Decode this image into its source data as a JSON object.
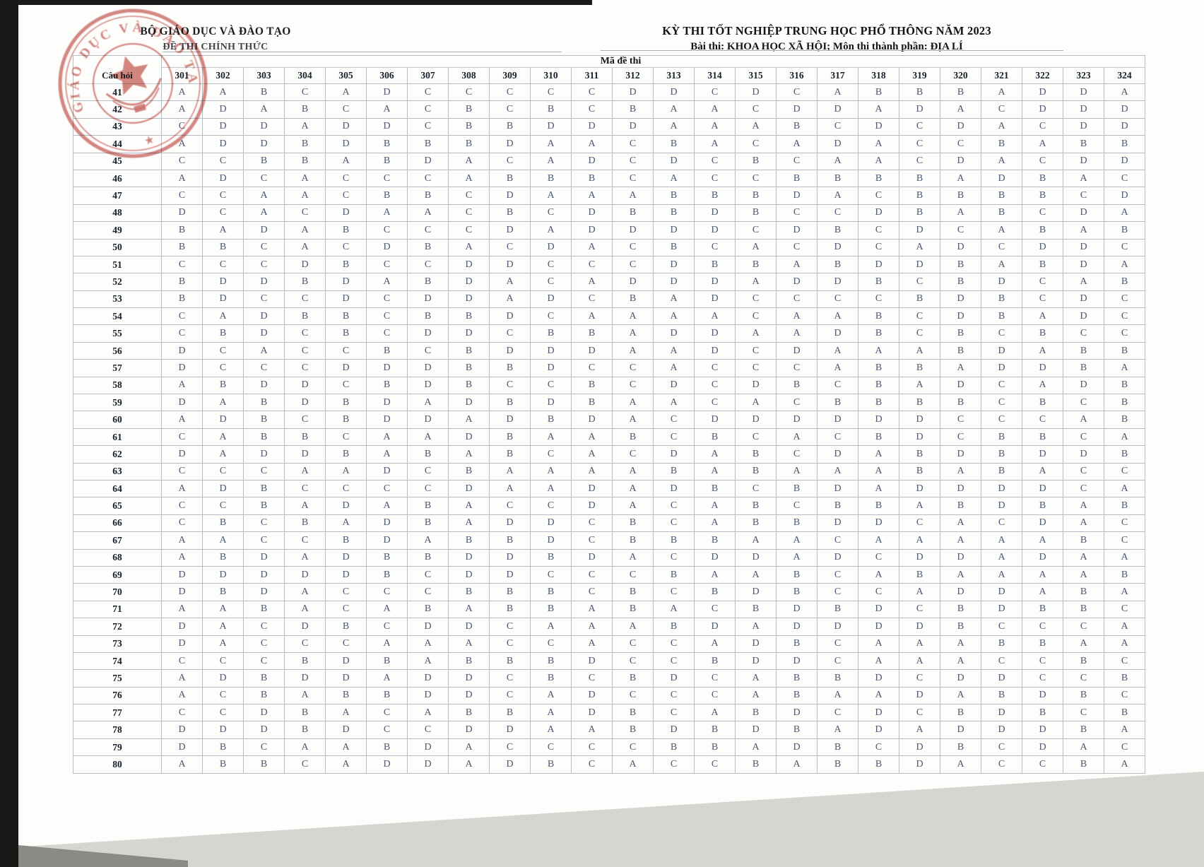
{
  "header": {
    "left_title": "BỘ GIÁO DỤC VÀ ĐÀO TẠO",
    "left_subtitle": "ĐỀ THI CHÍNH THỨC",
    "right_title": "KỲ THI TỐT NGHIỆP TRUNG HỌC PHỔ THÔNG NĂM 2023",
    "right_subtitle": "Bài thi:  KHOA HỌC XÃ HỘI; Môn thi thành phần: ĐỊA LÍ"
  },
  "stamp": {
    "arc_text": "GIÁO DỤC VÀ ĐÀO TẠO",
    "color": "#bd453e"
  },
  "table": {
    "corner_label": "Câu hỏi",
    "group_label": "Mã đề thi",
    "code_columns": [
      "301",
      "302",
      "303",
      "304",
      "305",
      "306",
      "307",
      "308",
      "309",
      "310",
      "311",
      "312",
      "313",
      "314",
      "315",
      "316",
      "317",
      "318",
      "319",
      "320",
      "321",
      "322",
      "323",
      "324"
    ],
    "rows": [
      {
        "q": "41",
        "answers": [
          "A",
          "A",
          "B",
          "C",
          "A",
          "D",
          "C",
          "C",
          "C",
          "C",
          "C",
          "D",
          "D",
          "C",
          "D",
          "C",
          "A",
          "B",
          "B",
          "B",
          "A",
          "D",
          "D",
          "A"
        ]
      },
      {
        "q": "42",
        "answers": [
          "A",
          "D",
          "A",
          "B",
          "C",
          "A",
          "C",
          "B",
          "C",
          "B",
          "C",
          "B",
          "A",
          "A",
          "C",
          "D",
          "D",
          "A",
          "D",
          "A",
          "C",
          "D",
          "D",
          "D"
        ]
      },
      {
        "q": "43",
        "answers": [
          "C",
          "D",
          "D",
          "A",
          "D",
          "D",
          "C",
          "B",
          "B",
          "D",
          "D",
          "D",
          "A",
          "A",
          "A",
          "B",
          "C",
          "D",
          "C",
          "D",
          "A",
          "C",
          "D",
          "D"
        ]
      },
      {
        "q": "44",
        "answers": [
          "A",
          "D",
          "D",
          "B",
          "D",
          "B",
          "B",
          "B",
          "D",
          "A",
          "A",
          "C",
          "B",
          "A",
          "C",
          "A",
          "D",
          "A",
          "C",
          "C",
          "B",
          "A",
          "B",
          "B"
        ]
      },
      {
        "q": "45",
        "answers": [
          "C",
          "C",
          "B",
          "B",
          "A",
          "B",
          "D",
          "A",
          "C",
          "A",
          "D",
          "C",
          "D",
          "C",
          "B",
          "C",
          "A",
          "A",
          "C",
          "D",
          "A",
          "C",
          "D",
          "D"
        ]
      },
      {
        "q": "46",
        "answers": [
          "A",
          "D",
          "C",
          "A",
          "C",
          "C",
          "C",
          "A",
          "B",
          "B",
          "B",
          "C",
          "A",
          "C",
          "C",
          "B",
          "B",
          "B",
          "B",
          "A",
          "D",
          "B",
          "A",
          "C"
        ]
      },
      {
        "q": "47",
        "answers": [
          "C",
          "C",
          "A",
          "A",
          "C",
          "B",
          "B",
          "C",
          "D",
          "A",
          "A",
          "A",
          "B",
          "B",
          "B",
          "D",
          "A",
          "C",
          "B",
          "B",
          "B",
          "B",
          "C",
          "D"
        ]
      },
      {
        "q": "48",
        "answers": [
          "D",
          "C",
          "A",
          "C",
          "D",
          "A",
          "A",
          "C",
          "B",
          "C",
          "D",
          "B",
          "B",
          "D",
          "B",
          "C",
          "C",
          "D",
          "B",
          "A",
          "B",
          "C",
          "D",
          "A"
        ]
      },
      {
        "q": "49",
        "answers": [
          "B",
          "A",
          "D",
          "A",
          "B",
          "C",
          "C",
          "C",
          "D",
          "A",
          "D",
          "D",
          "D",
          "D",
          "C",
          "D",
          "B",
          "C",
          "D",
          "C",
          "A",
          "B",
          "A",
          "B"
        ]
      },
      {
        "q": "50",
        "answers": [
          "B",
          "B",
          "C",
          "A",
          "C",
          "D",
          "B",
          "A",
          "C",
          "D",
          "A",
          "C",
          "B",
          "C",
          "A",
          "C",
          "D",
          "C",
          "A",
          "D",
          "C",
          "D",
          "D",
          "C"
        ]
      },
      {
        "q": "51",
        "answers": [
          "C",
          "C",
          "C",
          "D",
          "B",
          "C",
          "C",
          "D",
          "D",
          "C",
          "C",
          "C",
          "D",
          "B",
          "B",
          "A",
          "B",
          "D",
          "D",
          "B",
          "A",
          "B",
          "D",
          "A"
        ]
      },
      {
        "q": "52",
        "answers": [
          "B",
          "D",
          "D",
          "B",
          "D",
          "A",
          "B",
          "D",
          "A",
          "C",
          "A",
          "D",
          "D",
          "D",
          "A",
          "D",
          "D",
          "B",
          "C",
          "B",
          "D",
          "C",
          "A",
          "B"
        ]
      },
      {
        "q": "53",
        "answers": [
          "B",
          "D",
          "C",
          "C",
          "D",
          "C",
          "D",
          "D",
          "A",
          "D",
          "C",
          "B",
          "A",
          "D",
          "C",
          "C",
          "C",
          "C",
          "B",
          "D",
          "B",
          "C",
          "D",
          "C"
        ]
      },
      {
        "q": "54",
        "answers": [
          "C",
          "A",
          "D",
          "B",
          "B",
          "C",
          "B",
          "B",
          "D",
          "C",
          "A",
          "A",
          "A",
          "A",
          "C",
          "A",
          "A",
          "B",
          "C",
          "D",
          "B",
          "A",
          "D",
          "C"
        ]
      },
      {
        "q": "55",
        "answers": [
          "C",
          "B",
          "D",
          "C",
          "B",
          "C",
          "D",
          "D",
          "C",
          "B",
          "B",
          "A",
          "D",
          "D",
          "A",
          "A",
          "D",
          "B",
          "C",
          "B",
          "C",
          "B",
          "C",
          "C"
        ]
      },
      {
        "q": "56",
        "answers": [
          "D",
          "C",
          "A",
          "C",
          "C",
          "B",
          "C",
          "B",
          "D",
          "D",
          "D",
          "A",
          "A",
          "D",
          "C",
          "D",
          "A",
          "A",
          "A",
          "B",
          "D",
          "A",
          "B",
          "B"
        ]
      },
      {
        "q": "57",
        "answers": [
          "D",
          "C",
          "C",
          "C",
          "D",
          "D",
          "D",
          "B",
          "B",
          "D",
          "C",
          "C",
          "A",
          "C",
          "C",
          "C",
          "A",
          "B",
          "B",
          "A",
          "D",
          "D",
          "B",
          "A"
        ]
      },
      {
        "q": "58",
        "answers": [
          "A",
          "B",
          "D",
          "D",
          "C",
          "B",
          "D",
          "B",
          "C",
          "C",
          "B",
          "C",
          "D",
          "C",
          "D",
          "B",
          "C",
          "B",
          "A",
          "D",
          "C",
          "A",
          "D",
          "B"
        ]
      },
      {
        "q": "59",
        "answers": [
          "D",
          "A",
          "B",
          "D",
          "B",
          "D",
          "A",
          "D",
          "B",
          "D",
          "B",
          "A",
          "A",
          "C",
          "A",
          "C",
          "B",
          "B",
          "B",
          "B",
          "C",
          "B",
          "C",
          "B"
        ]
      },
      {
        "q": "60",
        "answers": [
          "A",
          "D",
          "B",
          "C",
          "B",
          "D",
          "D",
          "A",
          "D",
          "B",
          "D",
          "A",
          "C",
          "D",
          "D",
          "D",
          "D",
          "D",
          "D",
          "C",
          "C",
          "C",
          "A",
          "B"
        ]
      },
      {
        "q": "61",
        "answers": [
          "C",
          "A",
          "B",
          "B",
          "C",
          "A",
          "A",
          "D",
          "B",
          "A",
          "A",
          "B",
          "C",
          "B",
          "C",
          "A",
          "C",
          "B",
          "D",
          "C",
          "B",
          "B",
          "C",
          "A"
        ]
      },
      {
        "q": "62",
        "answers": [
          "D",
          "A",
          "D",
          "D",
          "B",
          "A",
          "B",
          "A",
          "B",
          "C",
          "A",
          "C",
          "D",
          "A",
          "B",
          "C",
          "D",
          "A",
          "B",
          "D",
          "B",
          "D",
          "D",
          "B"
        ]
      },
      {
        "q": "63",
        "answers": [
          "C",
          "C",
          "C",
          "A",
          "A",
          "D",
          "C",
          "B",
          "A",
          "A",
          "A",
          "A",
          "B",
          "A",
          "B",
          "A",
          "A",
          "A",
          "B",
          "A",
          "B",
          "A",
          "C",
          "C"
        ]
      },
      {
        "q": "64",
        "answers": [
          "A",
          "D",
          "B",
          "C",
          "C",
          "C",
          "C",
          "D",
          "A",
          "A",
          "D",
          "A",
          "D",
          "B",
          "C",
          "B",
          "D",
          "A",
          "D",
          "D",
          "D",
          "D",
          "C",
          "A"
        ]
      },
      {
        "q": "65",
        "answers": [
          "C",
          "C",
          "B",
          "A",
          "D",
          "A",
          "B",
          "A",
          "C",
          "C",
          "D",
          "A",
          "C",
          "A",
          "B",
          "C",
          "B",
          "B",
          "A",
          "B",
          "D",
          "B",
          "A",
          "B"
        ]
      },
      {
        "q": "66",
        "answers": [
          "C",
          "B",
          "C",
          "B",
          "A",
          "D",
          "B",
          "A",
          "D",
          "D",
          "C",
          "B",
          "C",
          "A",
          "B",
          "B",
          "D",
          "D",
          "C",
          "A",
          "C",
          "D",
          "A",
          "C"
        ]
      },
      {
        "q": "67",
        "answers": [
          "A",
          "A",
          "C",
          "C",
          "B",
          "D",
          "A",
          "B",
          "B",
          "D",
          "C",
          "B",
          "B",
          "B",
          "A",
          "A",
          "C",
          "A",
          "A",
          "A",
          "A",
          "A",
          "B",
          "C"
        ]
      },
      {
        "q": "68",
        "answers": [
          "A",
          "B",
          "D",
          "A",
          "D",
          "B",
          "B",
          "D",
          "D",
          "B",
          "D",
          "A",
          "C",
          "D",
          "D",
          "A",
          "D",
          "C",
          "D",
          "D",
          "A",
          "D",
          "A",
          "A"
        ]
      },
      {
        "q": "69",
        "answers": [
          "D",
          "D",
          "D",
          "D",
          "D",
          "B",
          "C",
          "D",
          "D",
          "C",
          "C",
          "C",
          "B",
          "A",
          "A",
          "B",
          "C",
          "A",
          "B",
          "A",
          "A",
          "A",
          "A",
          "B"
        ]
      },
      {
        "q": "70",
        "answers": [
          "D",
          "B",
          "D",
          "A",
          "C",
          "C",
          "C",
          "B",
          "B",
          "B",
          "C",
          "B",
          "C",
          "B",
          "D",
          "B",
          "C",
          "C",
          "A",
          "D",
          "D",
          "A",
          "B",
          "A"
        ]
      },
      {
        "q": "71",
        "answers": [
          "A",
          "A",
          "B",
          "A",
          "C",
          "A",
          "B",
          "A",
          "B",
          "B",
          "A",
          "B",
          "A",
          "C",
          "B",
          "D",
          "B",
          "D",
          "C",
          "B",
          "D",
          "B",
          "B",
          "C"
        ]
      },
      {
        "q": "72",
        "answers": [
          "D",
          "A",
          "C",
          "D",
          "B",
          "C",
          "D",
          "D",
          "C",
          "A",
          "A",
          "A",
          "B",
          "D",
          "A",
          "D",
          "D",
          "D",
          "D",
          "B",
          "C",
          "C",
          "C",
          "A"
        ]
      },
      {
        "q": "73",
        "answers": [
          "D",
          "A",
          "C",
          "C",
          "C",
          "A",
          "A",
          "A",
          "C",
          "C",
          "A",
          "C",
          "C",
          "A",
          "D",
          "B",
          "C",
          "A",
          "A",
          "A",
          "B",
          "B",
          "A",
          "A"
        ]
      },
      {
        "q": "74",
        "answers": [
          "C",
          "C",
          "C",
          "B",
          "D",
          "B",
          "A",
          "B",
          "B",
          "B",
          "D",
          "C",
          "C",
          "B",
          "D",
          "D",
          "C",
          "A",
          "A",
          "A",
          "C",
          "C",
          "B",
          "C"
        ]
      },
      {
        "q": "75",
        "answers": [
          "A",
          "D",
          "B",
          "D",
          "D",
          "A",
          "D",
          "D",
          "C",
          "B",
          "C",
          "B",
          "D",
          "C",
          "A",
          "B",
          "B",
          "D",
          "C",
          "D",
          "D",
          "C",
          "C",
          "B"
        ]
      },
      {
        "q": "76",
        "answers": [
          "A",
          "C",
          "B",
          "A",
          "B",
          "B",
          "D",
          "D",
          "C",
          "A",
          "D",
          "C",
          "C",
          "C",
          "A",
          "B",
          "A",
          "A",
          "D",
          "A",
          "B",
          "D",
          "B",
          "C"
        ]
      },
      {
        "q": "77",
        "answers": [
          "C",
          "C",
          "D",
          "B",
          "A",
          "C",
          "A",
          "B",
          "B",
          "A",
          "D",
          "B",
          "C",
          "A",
          "B",
          "D",
          "C",
          "D",
          "C",
          "B",
          "D",
          "B",
          "C",
          "B"
        ]
      },
      {
        "q": "78",
        "answers": [
          "D",
          "D",
          "D",
          "B",
          "D",
          "C",
          "C",
          "D",
          "D",
          "A",
          "A",
          "B",
          "D",
          "B",
          "D",
          "B",
          "A",
          "D",
          "A",
          "D",
          "D",
          "D",
          "B",
          "A"
        ]
      },
      {
        "q": "79",
        "answers": [
          "D",
          "B",
          "C",
          "A",
          "A",
          "B",
          "D",
          "A",
          "C",
          "C",
          "C",
          "C",
          "B",
          "B",
          "A",
          "D",
          "B",
          "C",
          "D",
          "B",
          "C",
          "D",
          "A",
          "C"
        ]
      },
      {
        "q": "80",
        "answers": [
          "A",
          "B",
          "B",
          "C",
          "A",
          "D",
          "D",
          "A",
          "D",
          "B",
          "C",
          "A",
          "C",
          "C",
          "B",
          "A",
          "B",
          "B",
          "D",
          "A",
          "C",
          "C",
          "B",
          "A"
        ]
      }
    ]
  }
}
